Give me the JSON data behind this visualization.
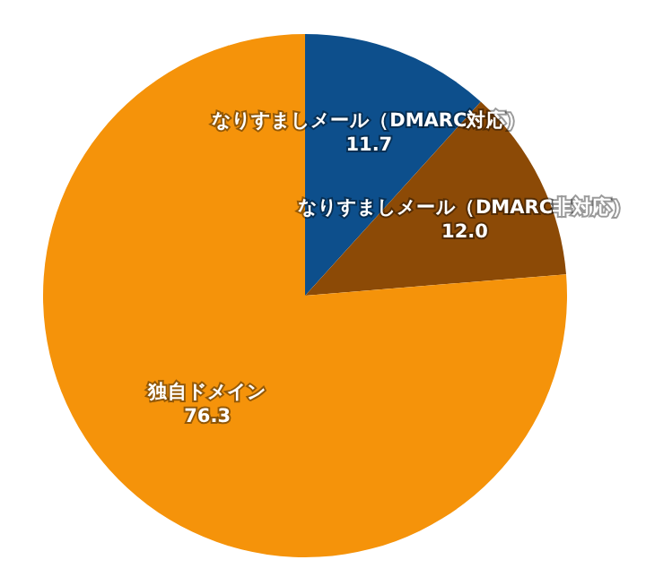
{
  "chart_data": {
    "type": "pie",
    "categories": [
      "なりすましメール（DMARC対応）",
      "なりすましメール（DMARC非対応）",
      "独自ドメイン"
    ],
    "values": [
      11.7,
      12.0,
      76.3
    ],
    "value_labels": [
      "11.7",
      "12.0",
      "76.3"
    ],
    "colors": [
      "#0d4f8c",
      "#8c4a06",
      "#f5930a"
    ],
    "legend": false
  }
}
